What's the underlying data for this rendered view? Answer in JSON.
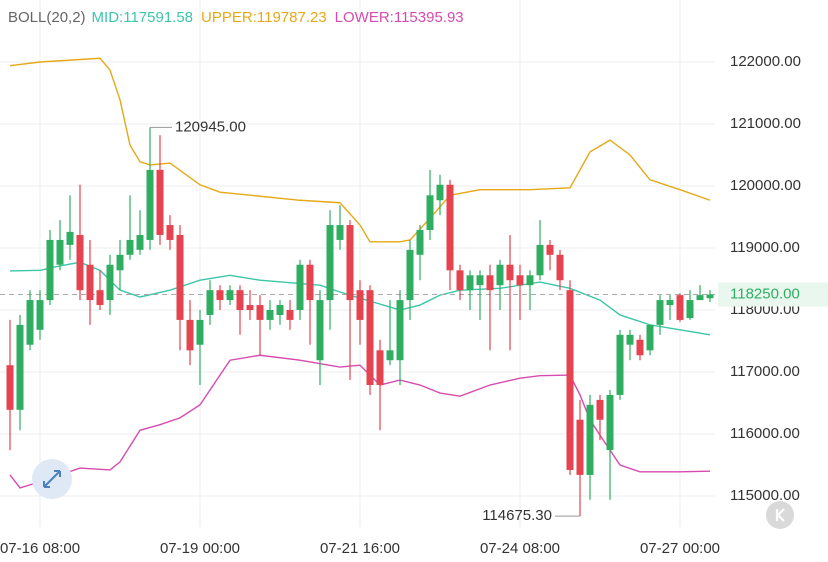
{
  "chart_data": {
    "type": "candlestick",
    "indicator": {
      "label": "BOLL(20,2)",
      "lines": [
        {
          "name": "MID:",
          "value": 117591.58,
          "color": "#3cc6a8",
          "x": [
            0,
            3,
            5,
            7,
            9,
            11,
            13,
            16,
            19,
            22,
            25,
            28,
            31,
            33,
            35,
            39,
            41,
            43,
            45,
            49,
            53,
            56,
            59,
            61,
            64,
            67,
            70
          ],
          "values": [
            118630,
            118640,
            118710,
            118770,
            118640,
            118320,
            118210,
            118320,
            118480,
            118560,
            118480,
            118440,
            118400,
            118290,
            118190,
            118000,
            118080,
            118240,
            118320,
            118350,
            118450,
            118350,
            118160,
            117920,
            117760,
            117680,
            117600
          ]
        },
        {
          "name": "UPPER:",
          "value": 119787.23,
          "color": "#e6a817",
          "x": [
            0,
            3,
            9,
            10,
            11,
            12,
            13,
            14,
            16,
            19,
            21,
            29,
            33,
            35,
            36,
            39,
            40,
            42,
            44,
            47,
            52,
            56,
            58,
            60,
            62,
            64,
            67,
            70
          ],
          "values": [
            121940,
            122000,
            122060,
            121870,
            121390,
            120660,
            120390,
            120340,
            120370,
            120020,
            119900,
            119770,
            119730,
            119370,
            119100,
            119100,
            119130,
            119480,
            119850,
            119940,
            119940,
            119970,
            120550,
            120740,
            120500,
            120100,
            119940,
            119770
          ]
        },
        {
          "name": "LOWER:",
          "value": 115395.93,
          "color": "#d64bb0",
          "x": [
            0,
            1,
            3,
            5,
            7,
            10,
            11,
            13,
            15,
            17,
            19,
            20,
            22,
            25,
            29,
            33,
            35,
            37,
            39,
            41,
            43,
            45,
            48,
            51,
            53,
            56,
            57,
            58,
            59,
            61,
            63,
            67,
            70
          ],
          "values": [
            115340,
            115130,
            115230,
            115340,
            115450,
            115420,
            115550,
            116060,
            116150,
            116260,
            116470,
            116710,
            117190,
            117270,
            117190,
            117080,
            117110,
            116790,
            116870,
            116790,
            116660,
            116610,
            116790,
            116900,
            116940,
            116950,
            116630,
            116230,
            115980,
            115500,
            115390,
            115390,
            115400
          ]
        }
      ]
    },
    "categories": [
      null,
      null,
      null,
      "07-16 08:00",
      null,
      null,
      null,
      null,
      null,
      null,
      null,
      null,
      null,
      null,
      null,
      null,
      null,
      null,
      null,
      "07-19 00:00",
      null,
      null,
      null,
      null,
      null,
      null,
      null,
      null,
      null,
      null,
      null,
      null,
      null,
      null,
      null,
      "07-21 16:00",
      null,
      null,
      null,
      null,
      null,
      null,
      null,
      null,
      null,
      null,
      null,
      null,
      null,
      null,
      null,
      "07-24 08:00",
      null,
      null,
      null,
      null,
      null,
      null,
      null,
      null,
      null,
      null,
      null,
      null,
      null,
      null,
      null,
      "07-27 00:00",
      null,
      null,
      null
    ],
    "open": [
      117110,
      116390,
      117440,
      117680,
      118160,
      118730,
      119050,
      119210,
      118730,
      118320,
      118160,
      118640,
      118890,
      118970,
      119130,
      120260,
      119370,
      119210,
      117840,
      117440,
      117920,
      118320,
      118160,
      118320,
      118080,
      118080,
      117840,
      117920,
      118000,
      118000,
      118730,
      117190,
      118160,
      119130,
      119370,
      118320,
      118320,
      117350,
      117190,
      117190,
      118160,
      118890,
      119290,
      119770,
      120020,
      118640,
      118320,
      118400,
      118560,
      118400,
      118730,
      118560,
      118400,
      118560,
      119050,
      118890,
      118320,
      116230,
      115340,
      116550,
      115740,
      116630,
      117440,
      117520,
      117350,
      117760,
      118080,
      118240,
      117870,
      118160,
      118190
    ],
    "high": [
      117840,
      117920,
      118320,
      118320,
      119290,
      119450,
      119850,
      120020,
      119130,
      118640,
      118890,
      119130,
      119850,
      119610,
      120945,
      120820,
      119530,
      119370,
      118160,
      118000,
      118480,
      118400,
      118400,
      118400,
      118320,
      118240,
      118160,
      118160,
      118160,
      118810,
      118810,
      118320,
      119610,
      119690,
      119450,
      118480,
      118400,
      117520,
      118160,
      118320,
      119130,
      119370,
      120260,
      120180,
      120100,
      118730,
      118640,
      118640,
      118730,
      118810,
      119210,
      118730,
      118640,
      119450,
      119130,
      118970,
      118480,
      116550,
      116630,
      116630,
      116710,
      117680,
      117680,
      117600,
      117760,
      118240,
      118240,
      118270,
      118320,
      118400,
      118320
    ],
    "low": [
      115740,
      116060,
      117350,
      117520,
      118080,
      118640,
      118810,
      118160,
      117760,
      118000,
      117920,
      118320,
      118810,
      118890,
      118970,
      119050,
      118970,
      117350,
      117110,
      116790,
      117760,
      118000,
      118080,
      117600,
      117840,
      117270,
      117680,
      117760,
      117680,
      117840,
      117440,
      116790,
      117680,
      118970,
      116870,
      117440,
      116630,
      116060,
      117110,
      116790,
      117840,
      118480,
      119130,
      119530,
      118320,
      118160,
      118000,
      117840,
      117350,
      118000,
      117350,
      117840,
      118000,
      118480,
      118640,
      118320,
      115340,
      114675.3,
      114940,
      115900,
      114940,
      116550,
      117190,
      117190,
      117270,
      117600,
      117840,
      117810,
      117840,
      118160,
      118130
    ],
    "close": [
      116390,
      117760,
      118160,
      118160,
      119130,
      119130,
      119260,
      118320,
      118160,
      118080,
      118730,
      118890,
      119130,
      119210,
      120260,
      119210,
      119130,
      117840,
      117350,
      117840,
      118320,
      118160,
      118320,
      118000,
      118000,
      117840,
      118000,
      118080,
      117840,
      118730,
      118160,
      118160,
      119370,
      119370,
      118160,
      117840,
      116790,
      116790,
      117350,
      118160,
      118970,
      119290,
      119850,
      120020,
      118640,
      118320,
      118560,
      118560,
      118320,
      118730,
      118480,
      118400,
      118560,
      119050,
      118890,
      118480,
      115420,
      115340,
      116470,
      116230,
      116630,
      117600,
      117600,
      117270,
      117760,
      118160,
      118160,
      117840,
      118160,
      118240,
      118250
    ],
    "up_color": "#2fae62",
    "down_color": "#e5434f",
    "ylim": [
      114500,
      123000
    ],
    "yticks": [
      {
        "value": 115000,
        "label": "115000.00"
      },
      {
        "value": 116000,
        "label": "116000.00"
      },
      {
        "value": 117000,
        "label": "117000.00"
      },
      {
        "value": 118000,
        "label": "118000.00"
      },
      {
        "value": 119000,
        "label": "119000.00"
      },
      {
        "value": 120000,
        "label": "120000.00"
      },
      {
        "value": 121000,
        "label": "121000.00"
      },
      {
        "value": 122000,
        "label": "122000.00"
      }
    ],
    "grid": true,
    "high_marker": {
      "index": 14,
      "value": 120945,
      "label": "120945.00"
    },
    "low_marker": {
      "index": 57,
      "value": 114675.3,
      "label": "114675.30"
    },
    "last_price": {
      "value": 118250,
      "label": "118250.00"
    }
  }
}
